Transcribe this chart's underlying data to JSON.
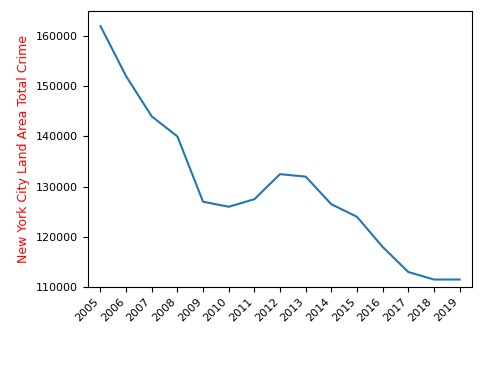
{
  "years": [
    2005,
    2006,
    2007,
    2008,
    2009,
    2010,
    2011,
    2012,
    2013,
    2014,
    2015,
    2016,
    2017,
    2018,
    2019
  ],
  "values": [
    162000,
    152000,
    144000,
    140000,
    127000,
    126000,
    127500,
    132500,
    132000,
    126500,
    124000,
    118000,
    113000,
    111500,
    111500
  ],
  "line_color": "#1f77b4",
  "line_width": 1.5,
  "ylabel": "New York City Land Area Total Crime",
  "ylabel_color": "red",
  "ylabel_fontsize": 9,
  "ylim": [
    110000,
    165000
  ],
  "yticks": [
    110000,
    120000,
    130000,
    140000,
    150000,
    160000
  ],
  "xtick_fontsize": 8,
  "ytick_fontsize": 8,
  "figure_width": 4.87,
  "figure_height": 3.68,
  "dpi": 100
}
